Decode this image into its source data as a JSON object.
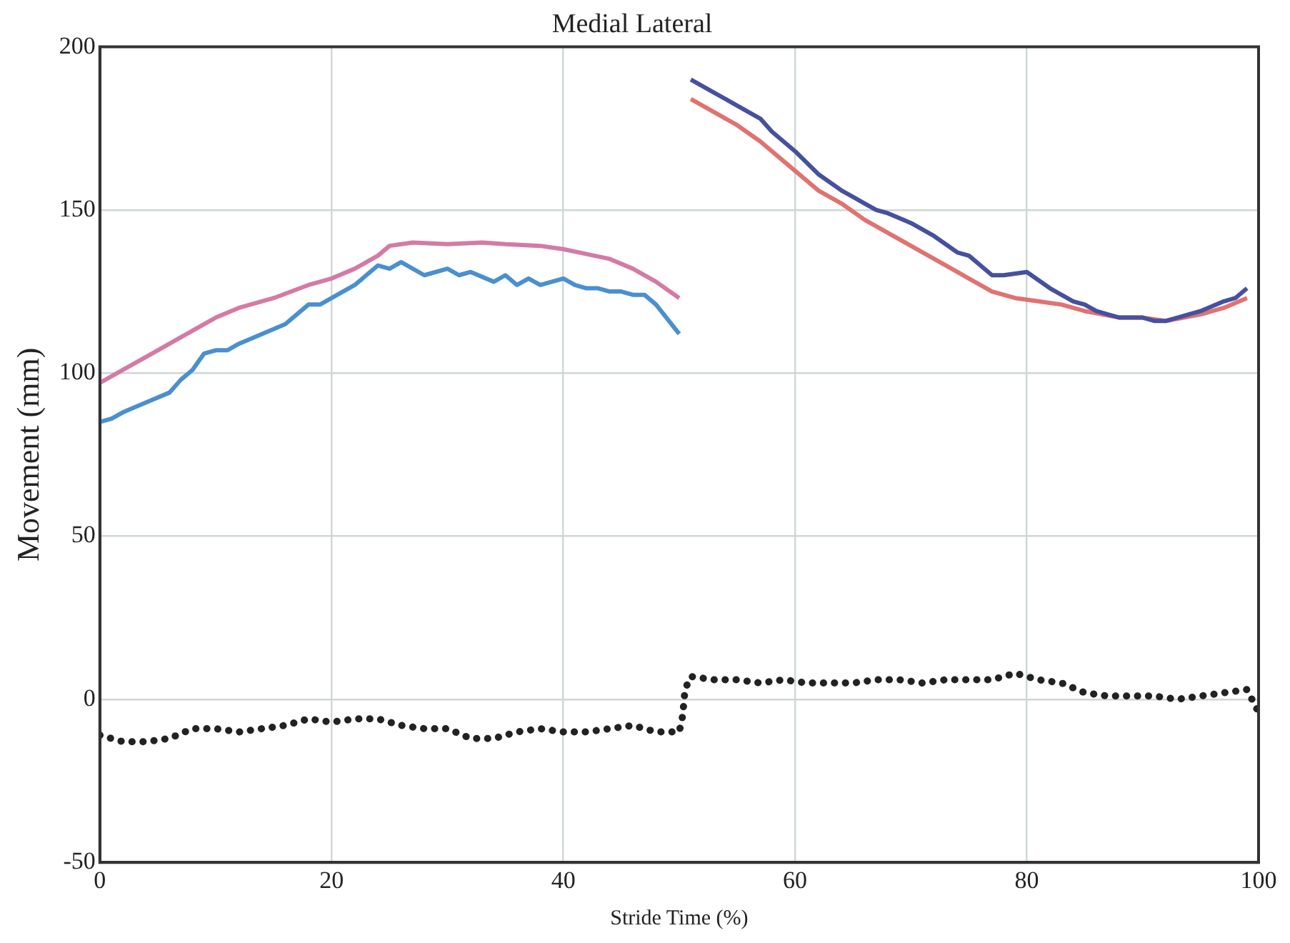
{
  "chart_data": {
    "type": "line",
    "title": "Medial Lateral",
    "xlabel": "Stride Time (%)",
    "ylabel": "Movement (mm)",
    "xlim": [
      0,
      100
    ],
    "xticks": [
      0,
      20,
      40,
      60,
      80,
      100
    ],
    "ylim": [
      -50,
      200
    ],
    "yticks": [
      -50,
      0,
      50,
      100,
      150,
      200
    ],
    "grid": true,
    "marker": "none",
    "series": [
      {
        "color": "#d47aa6",
        "x": [
          0,
          2,
          5,
          8,
          10,
          12,
          15,
          18,
          20,
          22,
          24,
          25,
          27,
          30,
          33,
          35,
          38,
          40,
          42,
          44,
          46,
          48,
          50
        ],
        "values": [
          97,
          101,
          107,
          113,
          117,
          120,
          123,
          127,
          129,
          132,
          136,
          139,
          140,
          139.5,
          140,
          139.5,
          139,
          138,
          136.5,
          135,
          132,
          128,
          123
        ]
      },
      {
        "color": "#4a8fd0",
        "x": [
          0,
          1,
          2,
          4,
          6,
          7,
          8,
          9,
          10,
          11,
          12,
          14,
          16,
          18,
          19,
          20,
          22,
          24,
          25,
          26,
          28,
          30,
          31,
          32,
          34,
          35,
          36,
          37,
          38,
          40,
          41,
          42,
          43,
          44,
          45,
          46,
          47,
          48,
          50
        ],
        "values": [
          85,
          86,
          88,
          91,
          94,
          98,
          101,
          106,
          107,
          107,
          109,
          112,
          115,
          121,
          121,
          123,
          127,
          133,
          132,
          134,
          130,
          132,
          130,
          131,
          128,
          130,
          127,
          129,
          127,
          129,
          127,
          126,
          126,
          125,
          125,
          124,
          124,
          121,
          112
        ]
      },
      {
        "color": "#4650a0",
        "x": [
          51,
          53,
          55,
          57,
          58,
          60,
          62,
          64,
          65,
          66,
          67,
          68,
          70,
          72,
          74,
          75,
          76,
          77,
          78,
          80,
          82,
          84,
          85,
          86,
          87,
          88,
          90,
          91,
          92,
          93,
          95,
          97,
          98,
          99
        ],
        "values": [
          190,
          186,
          182,
          178,
          174,
          168,
          161,
          156,
          154,
          152,
          150,
          149,
          146,
          142,
          137,
          136,
          133,
          130,
          130,
          131,
          126,
          122,
          121,
          119,
          118,
          117,
          117,
          116,
          116,
          117,
          119,
          122,
          123,
          126
        ]
      },
      {
        "color": "#e07272",
        "x": [
          51,
          53,
          55,
          57,
          60,
          62,
          64,
          66,
          68,
          70,
          72,
          74,
          75,
          77,
          79,
          81,
          83,
          85,
          88,
          90,
          92,
          95,
          97,
          99
        ],
        "values": [
          184,
          180,
          176,
          171,
          162,
          156,
          152,
          147,
          143,
          139,
          135,
          131,
          129,
          125,
          123,
          122,
          121,
          119,
          117,
          117,
          116,
          118,
          120,
          123
        ]
      },
      {
        "color": "#222222",
        "line_style": "dotted",
        "x": [
          0,
          2,
          4,
          6,
          8,
          10,
          12,
          14,
          16,
          18,
          20,
          22,
          24,
          26,
          28,
          30,
          32,
          34,
          36,
          38,
          40,
          42,
          44,
          46,
          48,
          50,
          50.3,
          50.5,
          51,
          53,
          55,
          57,
          59,
          61,
          63,
          65,
          67,
          69,
          71,
          73,
          75,
          77,
          79,
          81,
          83,
          85,
          87,
          89,
          91,
          93,
          95,
          97,
          99,
          100
        ],
        "values": [
          -11,
          -13,
          -13,
          -12,
          -9,
          -9,
          -10,
          -9,
          -8,
          -6,
          -7,
          -6,
          -6,
          -8,
          -9,
          -9,
          -12,
          -12,
          -10,
          -9,
          -10,
          -10,
          -9,
          -8,
          -10,
          -10,
          -5,
          3,
          7,
          6,
          6,
          5,
          6,
          5,
          5,
          5,
          6,
          6,
          5,
          6,
          6,
          6,
          8,
          6,
          5,
          2,
          1,
          1,
          1,
          0,
          1,
          2,
          3,
          -4
        ]
      }
    ]
  }
}
